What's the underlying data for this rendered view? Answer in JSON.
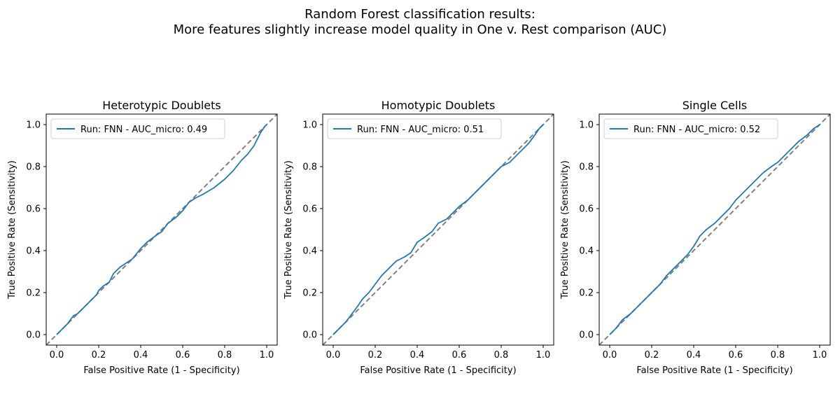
{
  "figure": {
    "title_line1": "Random Forest classification results:",
    "title_line2": "More features slightly increase model quality in One v. Rest comparison (AUC)"
  },
  "colors": {
    "roc_line": "#1f77b4",
    "diagonal": "#808080",
    "axes": "#000000",
    "background": "#ffffff"
  },
  "chart_data": [
    {
      "type": "line",
      "title": "Heterotypic Doublets",
      "xlabel": "False Positive Rate (1 - Specificity)",
      "ylabel": "True Positive Rate (Sensitivity)",
      "xlim": [
        -0.05,
        1.05
      ],
      "ylim": [
        -0.05,
        1.05
      ],
      "xticks": [
        "0.0",
        "0.2",
        "0.4",
        "0.6",
        "0.8",
        "1.0"
      ],
      "yticks": [
        "0.0",
        "0.2",
        "0.4",
        "0.6",
        "0.8",
        "1.0"
      ],
      "grid": false,
      "legend_position": "upper-left",
      "reference_line": {
        "style": "dashed",
        "x": [
          -0.05,
          1.05
        ],
        "y": [
          -0.05,
          1.05
        ]
      },
      "series": [
        {
          "name": "Run: FNN - AUC_micro: 0.49",
          "x": [
            0.0,
            0.02,
            0.05,
            0.08,
            0.1,
            0.13,
            0.16,
            0.19,
            0.2,
            0.22,
            0.25,
            0.27,
            0.3,
            0.33,
            0.36,
            0.4,
            0.43,
            0.47,
            0.5,
            0.53,
            0.57,
            0.6,
            0.63,
            0.66,
            0.7,
            0.75,
            0.8,
            0.84,
            0.88,
            0.91,
            0.94,
            0.97,
            0.99,
            1.0
          ],
          "y": [
            0.0,
            0.02,
            0.05,
            0.09,
            0.1,
            0.13,
            0.16,
            0.19,
            0.21,
            0.23,
            0.25,
            0.29,
            0.32,
            0.34,
            0.36,
            0.41,
            0.44,
            0.47,
            0.49,
            0.53,
            0.56,
            0.59,
            0.63,
            0.65,
            0.67,
            0.7,
            0.74,
            0.78,
            0.83,
            0.86,
            0.9,
            0.96,
            0.99,
            1.0
          ]
        }
      ]
    },
    {
      "type": "line",
      "title": "Homotypic Doublets",
      "xlabel": "False Positive Rate (1 - Specificity)",
      "ylabel": "True Positive Rate (Sensitivity)",
      "xlim": [
        -0.05,
        1.05
      ],
      "ylim": [
        -0.05,
        1.05
      ],
      "xticks": [
        "0.0",
        "0.2",
        "0.4",
        "0.6",
        "0.8",
        "1.0"
      ],
      "yticks": [
        "0.0",
        "0.2",
        "0.4",
        "0.6",
        "0.8",
        "1.0"
      ],
      "grid": false,
      "legend_position": "upper-left",
      "reference_line": {
        "style": "dashed",
        "x": [
          -0.05,
          1.05
        ],
        "y": [
          -0.05,
          1.05
        ]
      },
      "series": [
        {
          "name": "Run: FNN - AUC_micro: 0.51",
          "x": [
            0.0,
            0.03,
            0.06,
            0.09,
            0.12,
            0.14,
            0.17,
            0.2,
            0.23,
            0.26,
            0.3,
            0.34,
            0.37,
            0.4,
            0.43,
            0.47,
            0.5,
            0.54,
            0.57,
            0.6,
            0.64,
            0.67,
            0.7,
            0.74,
            0.77,
            0.8,
            0.84,
            0.87,
            0.9,
            0.93,
            0.96,
            0.98,
            1.0
          ],
          "y": [
            0.0,
            0.03,
            0.06,
            0.1,
            0.14,
            0.17,
            0.2,
            0.24,
            0.28,
            0.31,
            0.35,
            0.37,
            0.39,
            0.44,
            0.46,
            0.49,
            0.53,
            0.55,
            0.58,
            0.61,
            0.64,
            0.67,
            0.7,
            0.74,
            0.77,
            0.8,
            0.82,
            0.85,
            0.88,
            0.91,
            0.95,
            0.98,
            1.0
          ]
        }
      ]
    },
    {
      "type": "line",
      "title": "Single Cells",
      "xlabel": "False Positive Rate (1 - Specificity)",
      "ylabel": "True Positive Rate (Sensitivity)",
      "xlim": [
        -0.05,
        1.05
      ],
      "ylim": [
        -0.05,
        1.05
      ],
      "xticks": [
        "0.0",
        "0.2",
        "0.4",
        "0.6",
        "0.8",
        "1.0"
      ],
      "yticks": [
        "0.0",
        "0.2",
        "0.4",
        "0.6",
        "0.8",
        "1.0"
      ],
      "grid": false,
      "legend_position": "upper-left",
      "reference_line": {
        "style": "dashed",
        "x": [
          -0.05,
          1.05
        ],
        "y": [
          -0.05,
          1.05
        ]
      },
      "series": [
        {
          "name": "Run: FNN - AUC_micro: 0.52",
          "x": [
            0.0,
            0.03,
            0.06,
            0.1,
            0.13,
            0.17,
            0.2,
            0.24,
            0.27,
            0.3,
            0.34,
            0.37,
            0.4,
            0.43,
            0.46,
            0.5,
            0.54,
            0.57,
            0.6,
            0.64,
            0.67,
            0.7,
            0.73,
            0.77,
            0.8,
            0.84,
            0.87,
            0.9,
            0.94,
            0.97,
            1.0
          ],
          "y": [
            0.0,
            0.03,
            0.07,
            0.1,
            0.13,
            0.17,
            0.2,
            0.24,
            0.28,
            0.31,
            0.35,
            0.38,
            0.42,
            0.47,
            0.5,
            0.53,
            0.57,
            0.6,
            0.64,
            0.68,
            0.71,
            0.74,
            0.77,
            0.8,
            0.82,
            0.86,
            0.89,
            0.92,
            0.95,
            0.98,
            1.0
          ]
        }
      ]
    }
  ]
}
